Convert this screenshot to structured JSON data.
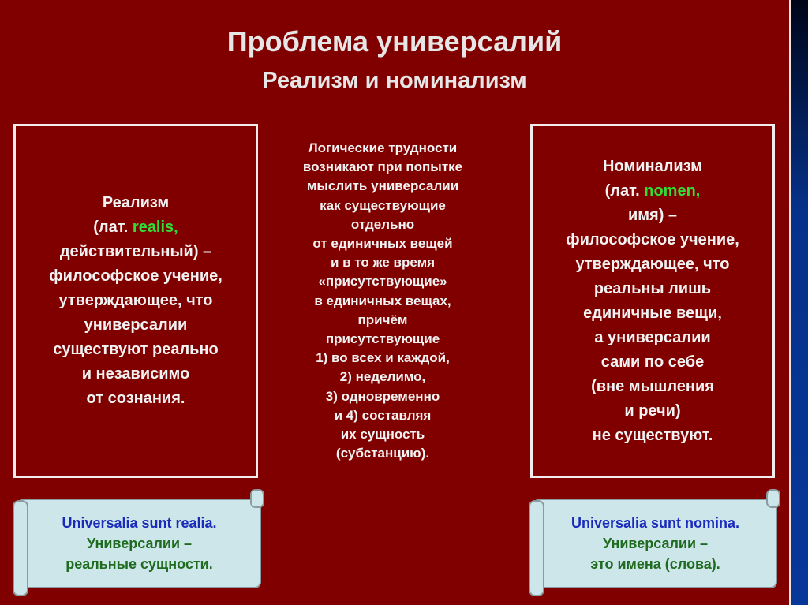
{
  "title": "Проблема универсалий",
  "subtitle": "Реализм и номинализм",
  "realism": {
    "heading": "Реализм",
    "lat_prefix": "(лат. ",
    "lat_word": "realis,",
    "lines": [
      "действительный) –",
      "философское учение,",
      "утверждающее, что",
      "универсалии",
      "существуют реально",
      "и независимо",
      "от сознания."
    ]
  },
  "middle": {
    "lines_a": [
      "Логические трудности",
      "возникают при попытке",
      "мыслить универсалии",
      "как существующие"
    ],
    "highlight1": "отдельно",
    "lines_b": [
      "от единичных вещей",
      "и в то же время"
    ],
    "highlight2": "«присутствующие»",
    "lines_c": [
      "в единичных вещах,",
      "причём",
      "присутствующие",
      "1) во всех и каждой,",
      "2) неделимо,",
      "3) одновременно",
      "и 4) составляя",
      "их сущность",
      "(субстанцию)."
    ]
  },
  "nominalism": {
    "heading": "Номинализм",
    "lat_prefix": "(лат. ",
    "lat_word": "nomen,",
    "lines": [
      "имя) –",
      "философское учение,",
      "утверждающее, что",
      "реальны лишь",
      "единичные вещи,",
      "а универсалии",
      "сами по себе",
      "(вне мышления",
      "и речи)",
      "не существуют."
    ]
  },
  "scroll_left": {
    "latin": "Universalia sunt realia.",
    "ru1": "Универсалии –",
    "ru2": "реальные сущности."
  },
  "scroll_right": {
    "latin": "Universalia sunt nomina.",
    "ru1": "Универсалии –",
    "ru2": "это имена (слова)."
  },
  "colors": {
    "background": "#800000",
    "heading": "#ffff33",
    "latin_term": "#33dd33",
    "highlight": "#33d6e6",
    "scroll": "#cde6ea"
  }
}
